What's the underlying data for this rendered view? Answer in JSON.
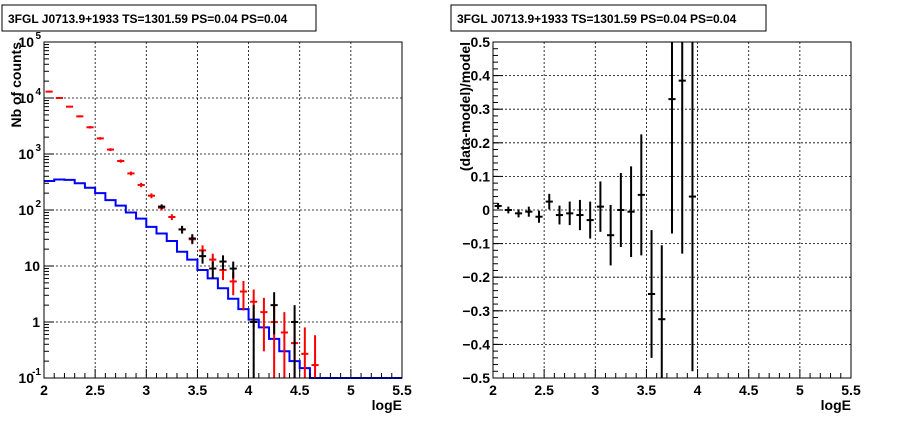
{
  "chart_data": [
    {
      "type": "line",
      "title": "3FGL J0713.9+1933 TS=1301.59 PS=0.04 PS=0.04",
      "xlabel": "logE",
      "ylabel": "Nb of counts",
      "xlim": [
        2,
        5.5
      ],
      "ylim": [
        0.1,
        100000
      ],
      "yscale": "log",
      "grid": true,
      "xticks": [
        "2",
        "2.5",
        "3",
        "3.5",
        "4",
        "4.5",
        "5",
        "5.5"
      ],
      "yticks": [
        {
          "v": 0.1,
          "t": "10",
          "e": "-1"
        },
        {
          "v": 1,
          "t": "1",
          "e": ""
        },
        {
          "v": 10,
          "t": "10",
          "e": ""
        },
        {
          "v": 100,
          "t": "10",
          "e": "2"
        },
        {
          "v": 1000,
          "t": "10",
          "e": "3"
        },
        {
          "v": 10000,
          "t": "10",
          "e": "4"
        },
        {
          "v": 100000,
          "t": "10",
          "e": "5"
        }
      ],
      "bin_edges": [
        2.0,
        2.1,
        2.2,
        2.3,
        2.4,
        2.5,
        2.6,
        2.7,
        2.8,
        2.9,
        3.0,
        3.1,
        3.2,
        3.3,
        3.4,
        3.5,
        3.6,
        3.7,
        3.8,
        3.9,
        4.0,
        4.1,
        4.2,
        4.3,
        4.4,
        4.5,
        4.6,
        4.7,
        4.8,
        4.9,
        5.0,
        5.1,
        5.2,
        5.3,
        5.4,
        5.5
      ],
      "series": [
        {
          "role": "model",
          "color": "#0000ff",
          "values": [
            330,
            350,
            345,
            300,
            250,
            200,
            150,
            120,
            90,
            70,
            50,
            38,
            28,
            18,
            13,
            8.5,
            6,
            4,
            2.6,
            1.7,
            1.1,
            0.8,
            0.5,
            0.3,
            0.2,
            0.15,
            0.1,
            0.1,
            0.1,
            0.1,
            0.1,
            0.1,
            0.1,
            0.1,
            0.1
          ]
        },
        {
          "role": "model-total",
          "color": "#ff0000",
          "points": [
            {
              "x": 2.05,
              "y": 13000,
              "lo": 12500,
              "hi": 13500
            },
            {
              "x": 2.15,
              "y": 10000,
              "lo": 9700,
              "hi": 10300
            },
            {
              "x": 2.25,
              "y": 7000,
              "lo": 6750,
              "hi": 7250
            },
            {
              "x": 2.35,
              "y": 4700,
              "lo": 4500,
              "hi": 4900
            },
            {
              "x": 2.45,
              "y": 3000,
              "lo": 2850,
              "hi": 3150
            },
            {
              "x": 2.55,
              "y": 1900,
              "lo": 1800,
              "hi": 2000
            },
            {
              "x": 2.65,
              "y": 1200,
              "lo": 1130,
              "hi": 1270
            },
            {
              "x": 2.75,
              "y": 750,
              "lo": 700,
              "hi": 800
            },
            {
              "x": 2.85,
              "y": 450,
              "lo": 415,
              "hi": 485
            },
            {
              "x": 2.95,
              "y": 280,
              "lo": 255,
              "hi": 305
            },
            {
              "x": 3.05,
              "y": 180,
              "lo": 162,
              "hi": 198
            },
            {
              "x": 3.15,
              "y": 110,
              "lo": 98,
              "hi": 122
            },
            {
              "x": 3.25,
              "y": 75,
              "lo": 66,
              "hi": 84
            },
            {
              "x": 3.35,
              "y": 45,
              "lo": 38,
              "hi": 52
            },
            {
              "x": 3.45,
              "y": 30,
              "lo": 24.5,
              "hi": 35.5
            },
            {
              "x": 3.55,
              "y": 19,
              "lo": 14.6,
              "hi": 23.4
            },
            {
              "x": 3.65,
              "y": 13,
              "lo": 9.4,
              "hi": 16.6
            },
            {
              "x": 3.75,
              "y": 8.5,
              "lo": 5.6,
              "hi": 11.4
            },
            {
              "x": 3.85,
              "y": 5.3,
              "lo": 3.0,
              "hi": 7.6
            },
            {
              "x": 3.95,
              "y": 3.5,
              "lo": 1.6,
              "hi": 5.4
            },
            {
              "x": 4.05,
              "y": 2.3,
              "lo": 0.8,
              "hi": 3.8
            },
            {
              "x": 4.15,
              "y": 1.5,
              "lo": 0.3,
              "hi": 2.7
            },
            {
              "x": 4.25,
              "y": 1.0,
              "lo": 0.1,
              "hi": 2.0
            },
            {
              "x": 4.35,
              "y": 0.65,
              "lo": 0.1,
              "hi": 1.5
            },
            {
              "x": 4.45,
              "y": 0.42,
              "lo": 0.1,
              "hi": 1.1
            },
            {
              "x": 4.55,
              "y": 0.27,
              "lo": 0.1,
              "hi": 0.8
            },
            {
              "x": 4.65,
              "y": 0.17,
              "lo": 0.1,
              "hi": 0.58
            }
          ]
        },
        {
          "role": "data",
          "color": "#000000",
          "points": [
            {
              "x": 3.15,
              "y": 115,
              "lo": 104,
              "hi": 126
            },
            {
              "x": 3.35,
              "y": 45,
              "lo": 38,
              "hi": 52
            },
            {
              "x": 3.45,
              "y": 31,
              "lo": 25,
              "hi": 37
            },
            {
              "x": 3.55,
              "y": 15,
              "lo": 11,
              "hi": 19
            },
            {
              "x": 3.65,
              "y": 9,
              "lo": 6,
              "hi": 12
            },
            {
              "x": 3.75,
              "y": 12,
              "lo": 8.5,
              "hi": 15.5
            },
            {
              "x": 3.85,
              "y": 9,
              "lo": 6,
              "hi": 12
            },
            {
              "x": 4.05,
              "y": 1,
              "lo": 0.1,
              "hi": 2.0
            },
            {
              "x": 4.25,
              "y": 2,
              "lo": 0.6,
              "hi": 3.4
            },
            {
              "x": 4.45,
              "y": 1,
              "lo": 0.1,
              "hi": 2.0
            }
          ]
        }
      ]
    },
    {
      "type": "scatter",
      "title": "3FGL J0713.9+1933 TS=1301.59 PS=0.04 PS=0.04",
      "xlabel": "logE",
      "ylabel": "(data-model)/model",
      "xlim": [
        2,
        5.5
      ],
      "ylim": [
        -0.5,
        0.5
      ],
      "grid": true,
      "xticks": [
        "2",
        "2.5",
        "3",
        "3.5",
        "4",
        "4.5",
        "5",
        "5.5"
      ],
      "yticks": [
        "-0.5",
        "-0.4",
        "-0.3",
        "-0.2",
        "-0.1",
        "0",
        "0.1",
        "0.2",
        "0.3",
        "0.4",
        "0.5"
      ],
      "series": [
        {
          "role": "residuals",
          "color": "#000000",
          "points": [
            {
              "x": 2.05,
              "y": 0.012,
              "err": 0.009
            },
            {
              "x": 2.15,
              "y": 0.0,
              "err": 0.01
            },
            {
              "x": 2.25,
              "y": -0.01,
              "err": 0.012
            },
            {
              "x": 2.35,
              "y": -0.005,
              "err": 0.015
            },
            {
              "x": 2.45,
              "y": -0.02,
              "err": 0.018
            },
            {
              "x": 2.55,
              "y": 0.025,
              "err": 0.023
            },
            {
              "x": 2.65,
              "y": -0.015,
              "err": 0.028
            },
            {
              "x": 2.75,
              "y": -0.01,
              "err": 0.035
            },
            {
              "x": 2.85,
              "y": -0.015,
              "err": 0.045
            },
            {
              "x": 2.95,
              "y": -0.03,
              "err": 0.055
            },
            {
              "x": 3.05,
              "y": 0.01,
              "err": 0.075
            },
            {
              "x": 3.15,
              "y": -0.075,
              "err": 0.09
            },
            {
              "x": 3.25,
              "y": 0.0,
              "err": 0.11
            },
            {
              "x": 3.35,
              "y": -0.005,
              "err": 0.135
            },
            {
              "x": 3.45,
              "y": 0.045,
              "err": 0.18
            },
            {
              "x": 3.55,
              "y": -0.25,
              "err": 0.19
            },
            {
              "x": 3.65,
              "y": -0.325,
              "err": 0.22
            },
            {
              "x": 3.75,
              "y": 0.33,
              "err": 0.4
            },
            {
              "x": 3.85,
              "y": 0.385,
              "err": 0.515
            },
            {
              "x": 3.95,
              "y": 0.04,
              "err": 0.52
            }
          ]
        }
      ]
    }
  ]
}
